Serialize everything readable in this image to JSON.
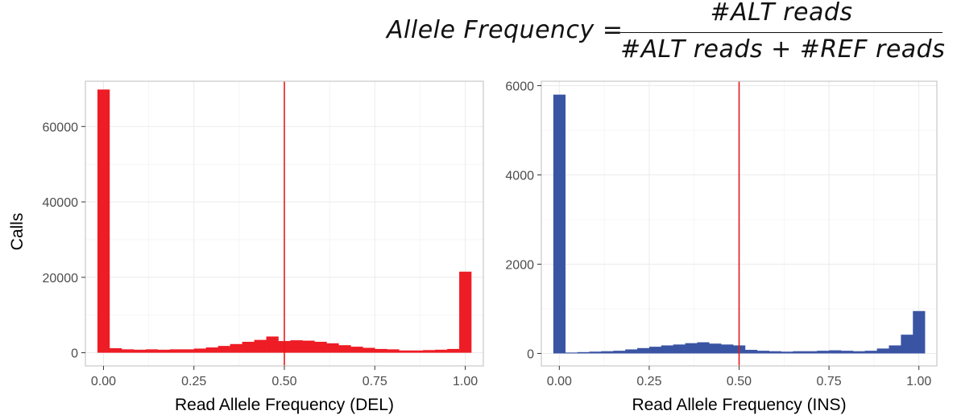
{
  "formula": {
    "lhs": "Allele Frequency =",
    "numerator": "#ALT reads",
    "denominator": "#ALT reads + #REF reads"
  },
  "colors": {
    "del": "#ee1c24",
    "ins": "#3a54a4",
    "ref_line": "#e41a1c",
    "panel_border": "#c7c7c7",
    "grid": "#f0f0f0"
  },
  "chart_data": [
    {
      "type": "bar",
      "histogram": true,
      "xlabel": "Read Allele Frequency (DEL)",
      "ylabel": "Calls",
      "xlim": [
        -0.05,
        1.05
      ],
      "ylim": [
        -3500,
        72000
      ],
      "x_ticks": [
        "0.00",
        "0.25",
        "0.50",
        "0.75",
        "1.00"
      ],
      "x_tick_values": [
        0,
        0.25,
        0.5,
        0.75,
        1.0
      ],
      "y_ticks": [
        "0",
        "20000",
        "40000",
        "60000"
      ],
      "y_tick_values": [
        0,
        20000,
        40000,
        60000
      ],
      "bin_width": 0.0333,
      "bin_centers": [
        0.0,
        0.0333,
        0.0667,
        0.1,
        0.1333,
        0.1667,
        0.2,
        0.2333,
        0.2667,
        0.3,
        0.3333,
        0.3667,
        0.4,
        0.4333,
        0.4667,
        0.5,
        0.5333,
        0.5667,
        0.6,
        0.6333,
        0.6667,
        0.7,
        0.7333,
        0.7667,
        0.8,
        0.8333,
        0.8667,
        0.9,
        0.9333,
        0.9667,
        1.0
      ],
      "values": [
        69800,
        1200,
        900,
        800,
        900,
        800,
        900,
        900,
        1100,
        1400,
        1800,
        2300,
        2900,
        3400,
        4300,
        3100,
        3300,
        3200,
        2900,
        2500,
        2000,
        1600,
        1300,
        1000,
        900,
        600,
        600,
        700,
        800,
        1000,
        21500
      ],
      "vline": 0.5
    },
    {
      "type": "bar",
      "histogram": true,
      "xlabel": "Read Allele Frequency (INS)",
      "ylabel": "",
      "xlim": [
        -0.05,
        1.05
      ],
      "ylim": [
        -280,
        6100
      ],
      "x_ticks": [
        "0.00",
        "0.25",
        "0.50",
        "0.75",
        "1.00"
      ],
      "x_tick_values": [
        0,
        0.25,
        0.5,
        0.75,
        1.0
      ],
      "y_ticks": [
        "0",
        "2000",
        "4000",
        "6000"
      ],
      "y_tick_values": [
        0,
        2000,
        4000,
        6000
      ],
      "bin_width": 0.0333,
      "bin_centers": [
        0.0,
        0.0333,
        0.0667,
        0.1,
        0.1333,
        0.1667,
        0.2,
        0.2333,
        0.2667,
        0.3,
        0.3333,
        0.3667,
        0.4,
        0.4333,
        0.4667,
        0.5,
        0.5333,
        0.5667,
        0.6,
        0.6333,
        0.6667,
        0.7,
        0.7333,
        0.7667,
        0.8,
        0.8333,
        0.8667,
        0.9,
        0.9333,
        0.9667,
        1.0
      ],
      "values": [
        5800,
        20,
        30,
        40,
        50,
        60,
        90,
        120,
        150,
        180,
        200,
        230,
        250,
        220,
        200,
        180,
        80,
        60,
        50,
        40,
        50,
        50,
        60,
        70,
        60,
        50,
        60,
        110,
        180,
        420,
        950
      ],
      "vline": 0.5
    }
  ]
}
